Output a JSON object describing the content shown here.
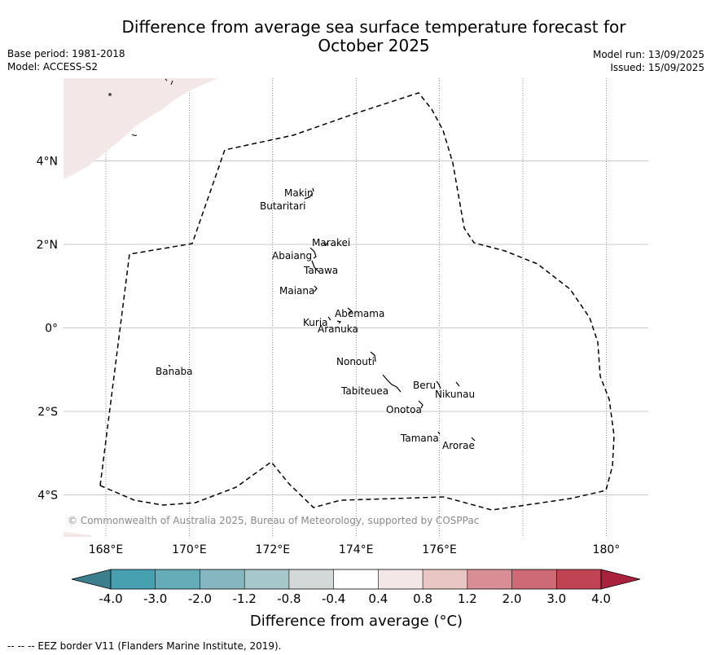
{
  "header": {
    "title_line1": "Difference from average sea surface temperature forecast for",
    "title_line2": "October 2025",
    "base_period": "Base period: 1981-2018",
    "model": "Model: ACCESS-S2",
    "model_run": "Model run: 13/09/2025",
    "issued": "Issued: 15/09/2025"
  },
  "map": {
    "lon_range": [
      167,
      181
    ],
    "lat_range": [
      -5,
      6
    ],
    "longitude_ticks": [
      "168°E",
      "170°E",
      "172°E",
      "174°E",
      "176°E",
      "180°"
    ],
    "latitude_ticks": [
      "4°N",
      "2°N",
      "0°",
      "2°S",
      "4°S"
    ],
    "islands": [
      {
        "name": "Makin"
      },
      {
        "name": "Butaritari"
      },
      {
        "name": "Marakei"
      },
      {
        "name": "Abaiang"
      },
      {
        "name": "Tarawa"
      },
      {
        "name": "Maiana"
      },
      {
        "name": "Abemama"
      },
      {
        "name": "Kuria"
      },
      {
        "name": "Aranuka"
      },
      {
        "name": "Nonouti"
      },
      {
        "name": "Banaba"
      },
      {
        "name": "Tabiteuea"
      },
      {
        "name": "Beru"
      },
      {
        "name": "Nikunau"
      },
      {
        "name": "Onotoa"
      },
      {
        "name": "Tamana"
      },
      {
        "name": "Arorae"
      }
    ],
    "land_color": "#f3e8e7",
    "copyright": "© Commonwealth of Australia 2025, Bureau of Meteorology, supported by COSPPac"
  },
  "colorbar": {
    "colors": [
      "#3c7f8c",
      "#47a0b0",
      "#66acb8",
      "#86b7c0",
      "#a7c8cb",
      "#d3d9d8",
      "#ffffff",
      "#f3e8e7",
      "#e8c6c3",
      "#d98e96",
      "#cd6a75",
      "#c04354",
      "#a8213d"
    ],
    "tick_labels": [
      "-4.0",
      "-3.0",
      "-2.0",
      "-1.2",
      "-0.8",
      "-0.4",
      "0.4",
      "0.8",
      "1.2",
      "2.0",
      "3.0",
      "4.0"
    ],
    "label": "Difference from average (°C)"
  },
  "footnote": "--  --  -- EEZ border V11 (Flanders Marine Institute, 2019)."
}
